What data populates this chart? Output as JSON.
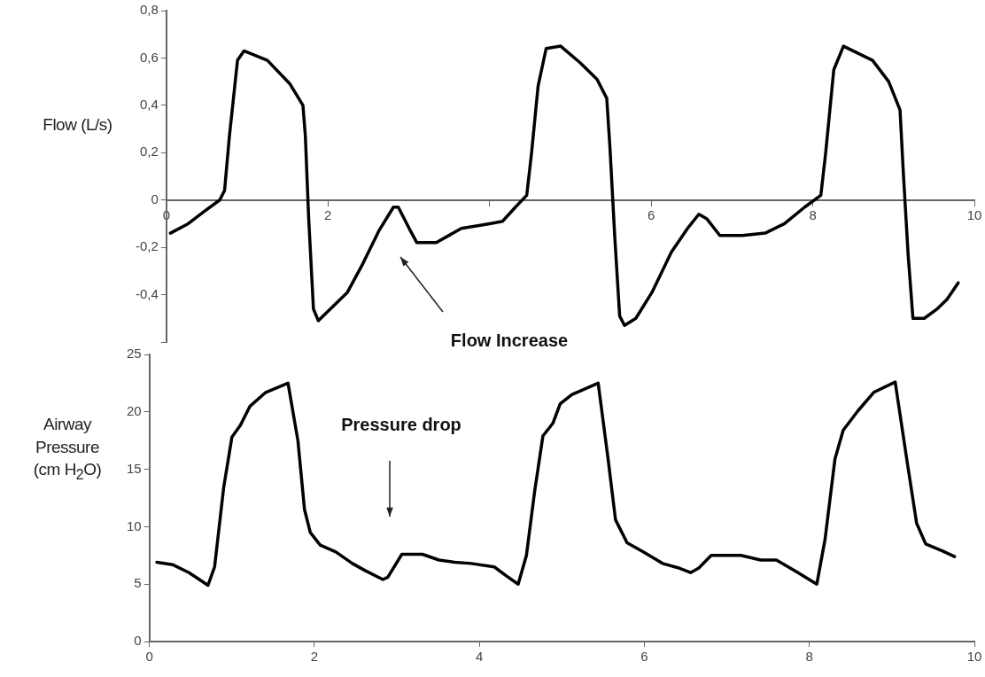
{
  "chart_data": [
    {
      "type": "line",
      "ylabel": "Flow (L/s)",
      "legend": false,
      "grid": false,
      "marker": "none",
      "line_style": "solid",
      "xlim": [
        0,
        10
      ],
      "xticks": [
        0,
        2,
        {
          "value": 4,
          "label": null
        },
        6,
        8,
        10
      ],
      "ylim": [
        -0.6,
        0.8
      ],
      "yticks": [
        {
          "value": -0.6,
          "label": null
        },
        {
          "value": -0.4,
          "label": "-0,4"
        },
        {
          "value": -0.2,
          "label": "-0,2"
        },
        0,
        {
          "value": 0.2,
          "label": "0,2"
        },
        {
          "value": 0.4,
          "label": "0,4"
        },
        {
          "value": 0.6,
          "label": "0,6"
        },
        {
          "value": 0.8,
          "label": "0,8"
        }
      ],
      "annotations": [
        "Flow Increase"
      ],
      "series": [
        {
          "color": "#000000",
          "x": [
            0.05,
            0.27,
            0.46,
            0.66,
            0.72,
            0.78,
            0.88,
            0.96,
            1.25,
            1.53,
            1.69,
            1.72,
            1.76,
            1.82,
            1.88,
            2.0,
            2.24,
            2.43,
            2.63,
            2.81,
            2.87,
            3.02,
            3.1,
            3.34,
            3.65,
            4.0,
            4.16,
            4.32,
            4.46,
            4.52,
            4.6,
            4.7,
            4.88,
            5.12,
            5.33,
            5.45,
            5.49,
            5.55,
            5.61,
            5.67,
            5.81,
            6.01,
            6.25,
            6.45,
            6.59,
            6.69,
            6.85,
            7.13,
            7.41,
            7.65,
            7.9,
            8.1,
            8.16,
            8.26,
            8.38,
            8.74,
            8.94,
            9.08,
            9.12,
            9.18,
            9.24,
            9.38,
            9.54,
            9.66,
            9.8
          ],
          "values": [
            -0.14,
            -0.1,
            -0.05,
            0.0,
            0.04,
            0.27,
            0.59,
            0.63,
            0.59,
            0.49,
            0.4,
            0.27,
            -0.07,
            -0.46,
            -0.51,
            -0.47,
            -0.39,
            -0.27,
            -0.13,
            -0.03,
            -0.03,
            -0.13,
            -0.18,
            -0.18,
            -0.12,
            -0.1,
            -0.09,
            -0.03,
            0.02,
            0.2,
            0.48,
            0.64,
            0.65,
            0.58,
            0.51,
            0.43,
            0.22,
            -0.16,
            -0.49,
            -0.53,
            -0.5,
            -0.39,
            -0.22,
            -0.12,
            -0.06,
            -0.08,
            -0.15,
            -0.15,
            -0.14,
            -0.1,
            -0.03,
            0.02,
            0.2,
            0.55,
            0.65,
            0.59,
            0.5,
            0.38,
            0.12,
            -0.23,
            -0.5,
            -0.5,
            -0.46,
            -0.42,
            -0.35
          ]
        }
      ]
    },
    {
      "type": "line",
      "ylabel": "Airway Pressure (cm H$_{2}$O)",
      "legend": false,
      "grid": false,
      "marker": "none",
      "line_style": "solid",
      "xlim": [
        0,
        10
      ],
      "xticks": [
        0,
        2,
        4,
        6,
        8,
        10
      ],
      "ylim": [
        0,
        25
      ],
      "yticks": [
        0,
        5,
        10,
        15,
        20,
        25
      ],
      "annotations": [
        "Pressure drop"
      ],
      "series": [
        {
          "color": "#000000",
          "x": [
            0.09,
            0.28,
            0.48,
            0.71,
            0.79,
            0.9,
            1.0,
            1.1,
            1.22,
            1.41,
            1.68,
            1.8,
            1.88,
            1.95,
            2.07,
            2.26,
            2.46,
            2.61,
            2.83,
            2.89,
            3.06,
            3.31,
            3.51,
            3.7,
            3.9,
            4.18,
            4.33,
            4.47,
            4.57,
            4.67,
            4.77,
            4.89,
            4.98,
            5.12,
            5.44,
            5.56,
            5.65,
            5.79,
            5.99,
            6.22,
            6.42,
            6.56,
            6.66,
            6.81,
            7.17,
            7.41,
            7.6,
            7.84,
            8.09,
            8.19,
            8.31,
            8.41,
            8.59,
            8.78,
            9.04,
            9.18,
            9.3,
            9.41,
            9.61,
            9.76
          ],
          "values": [
            6.9,
            6.7,
            6.0,
            4.9,
            6.5,
            13.4,
            17.8,
            18.8,
            20.5,
            21.7,
            22.5,
            17.5,
            11.5,
            9.5,
            8.4,
            7.8,
            6.8,
            6.2,
            5.4,
            5.6,
            7.6,
            7.6,
            7.1,
            6.9,
            6.8,
            6.5,
            5.7,
            5.0,
            7.5,
            13.1,
            17.9,
            19.0,
            20.7,
            21.5,
            22.5,
            15.9,
            10.6,
            8.6,
            7.8,
            6.8,
            6.4,
            6.0,
            6.4,
            7.5,
            7.5,
            7.1,
            7.1,
            6.1,
            5.0,
            8.9,
            15.9,
            18.4,
            20.1,
            21.7,
            22.6,
            15.9,
            10.3,
            8.5,
            7.9,
            7.4
          ]
        }
      ]
    }
  ]
}
